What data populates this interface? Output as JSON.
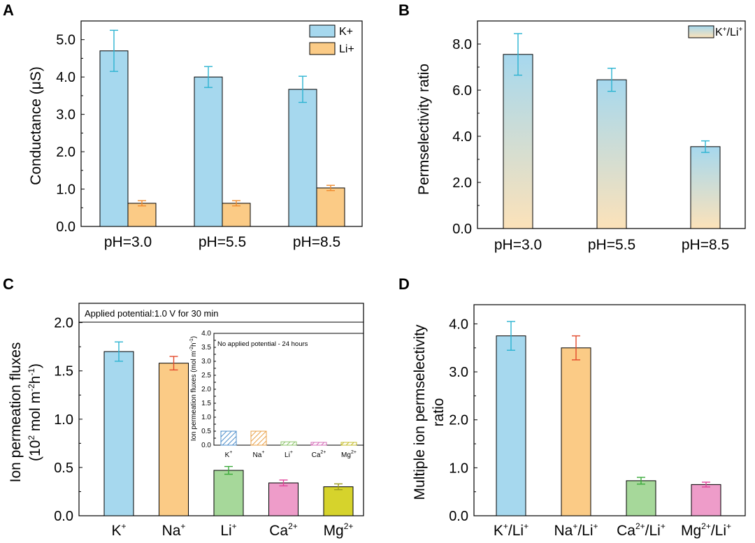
{
  "chart_data": [
    {
      "panel": "A",
      "type": "bar",
      "ylabel": "Conductance (μS)",
      "categories": [
        "pH=3.0",
        "pH=5.5",
        "pH=8.5"
      ],
      "series": [
        {
          "name": "K+",
          "color": "#A6D8EE",
          "values": [
            4.7,
            4.0,
            3.67
          ],
          "errors": [
            0.55,
            0.28,
            0.35
          ]
        },
        {
          "name": "Li+",
          "color": "#FBCB86",
          "values": [
            0.62,
            0.62,
            1.03
          ],
          "errors": [
            0.07,
            0.07,
            0.07
          ]
        }
      ],
      "ylim": [
        0,
        5.5
      ],
      "yticks": [
        "0.0",
        "1.0",
        "2.0",
        "3.0",
        "4.0",
        "5.0"
      ],
      "error_colors": {
        "K+": "#2BB3D1",
        "Li+": "#F08A2C"
      }
    },
    {
      "panel": "B",
      "type": "bar",
      "ylabel": "Permselectivity ratio",
      "categories": [
        "pH=3.0",
        "pH=5.5",
        "pH=8.5"
      ],
      "series": [
        {
          "name": "K+/Li+",
          "values": [
            7.55,
            6.45,
            3.55
          ],
          "errors": [
            0.9,
            0.5,
            0.25
          ]
        }
      ],
      "legend_label": {
        "a": "K",
        "sup_a": "+",
        "mid": "/Li",
        "sup_b": "+"
      },
      "ylim": [
        0,
        9
      ],
      "yticks": [
        "0.0",
        "2.0",
        "4.0",
        "6.0",
        "8.0"
      ],
      "gradient": {
        "top": "#A6D8EE",
        "bottom": "#FCE2B9"
      },
      "error_color": "#2BB3D1"
    },
    {
      "panel": "C",
      "type": "bar",
      "ylabel": "Ion permeation fluxes",
      "ylabel2": {
        "open": "(10",
        "sup1": "2",
        "mid": " mol m",
        "sup2": "-2",
        "h": "h",
        "sup3": "-1",
        "close": ")"
      },
      "annotation": "Applied potential:1.0 V for 30 min",
      "categories": [
        {
          "base": "K",
          "sup": "+"
        },
        {
          "base": "Na",
          "sup": "+"
        },
        {
          "base": "Li",
          "sup": "+"
        },
        {
          "base": "Ca",
          "sup": "2+"
        },
        {
          "base": "Mg",
          "sup": "2+"
        }
      ],
      "values": [
        1.7,
        1.58,
        0.47,
        0.34,
        0.3
      ],
      "errors": [
        0.1,
        0.07,
        0.04,
        0.03,
        0.03
      ],
      "colors": [
        "#A6D8EE",
        "#FBCB86",
        "#A6D89A",
        "#EE9CC9",
        "#D6D32C"
      ],
      "error_colors": [
        "#2BB3D1",
        "#E34A2C",
        "#3AAA3A",
        "#E0449A",
        "#9C9A1C"
      ],
      "ylim": [
        0,
        2.2
      ],
      "yticks": [
        "0.0",
        "0.5",
        "1.0",
        "1.5",
        "2.0"
      ],
      "inset": {
        "type": "bar",
        "annotation": "No applied potential - 24 hours",
        "ylabel": "Ion permeation fluxes (mol m-2h-1)",
        "ylabel_parts": {
          "a": "Ion permeation fluxes (mol m",
          "sup1": "-2",
          "b": "h",
          "sup2": "-1",
          "c": ")"
        },
        "categories": [
          {
            "base": "K",
            "sup": "+"
          },
          {
            "base": "Na",
            "sup": "+"
          },
          {
            "base": "Li",
            "sup": "+"
          },
          {
            "base": "Ca",
            "sup": "2+"
          },
          {
            "base": "Mg",
            "sup": "2+"
          }
        ],
        "values": [
          0.5,
          0.5,
          0.12,
          0.1,
          0.1
        ],
        "colors": [
          "#4F8FCB",
          "#E9A24A",
          "#8CC46A",
          "#D46CB8",
          "#C4BD2A"
        ],
        "ylim": [
          0,
          4.0
        ],
        "yticks": [
          "0.0",
          "0.5",
          "1.0",
          "1.5",
          "2.0",
          "2.5",
          "3.0",
          "3.5",
          "4.0"
        ]
      }
    },
    {
      "panel": "D",
      "type": "bar",
      "ylabel": "Multiple ion permselectivity",
      "ylabel2": "ratio",
      "categories": [
        {
          "a": "K",
          "sa": "+",
          "b": "/Li",
          "sb": "+"
        },
        {
          "a": "Na",
          "sa": "+",
          "b": "/Li",
          "sb": "+"
        },
        {
          "a": "Ca",
          "sa": "2+",
          "b": "/Li",
          "sb": "+"
        },
        {
          "a": "Mg",
          "sa": "2+",
          "b": "/Li",
          "sb": "+"
        }
      ],
      "values": [
        3.75,
        3.5,
        0.73,
        0.65
      ],
      "errors": [
        0.3,
        0.25,
        0.07,
        0.05
      ],
      "colors": [
        "#A6D8EE",
        "#FBCB86",
        "#A6D89A",
        "#EE9CC9"
      ],
      "error_colors": [
        "#2BB3D1",
        "#E34A2C",
        "#3AAA3A",
        "#E0449A"
      ],
      "ylim": [
        0,
        4.4
      ],
      "yticks": [
        "0.0",
        "1.0",
        "2.0",
        "3.0",
        "4.0"
      ]
    }
  ]
}
